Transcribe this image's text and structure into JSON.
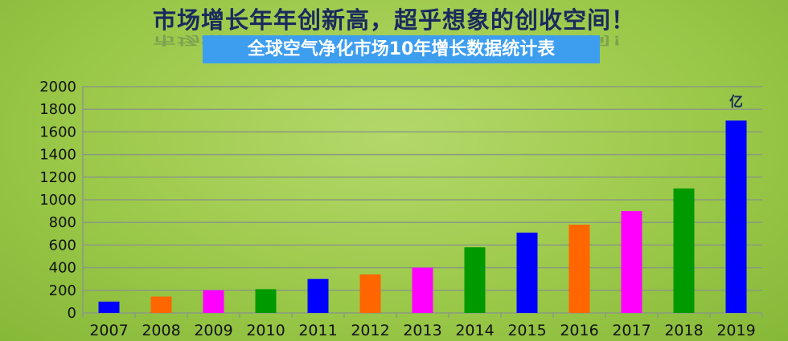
{
  "headline": "市场增长年年创新高，超乎想象的创收空间！",
  "chart_data": {
    "type": "bar",
    "title": "全球空气净化市场10年增长数据统计表",
    "unit_label": "亿",
    "categories": [
      "2007",
      "2008",
      "2009",
      "2010",
      "2011",
      "2012",
      "2013",
      "2014",
      "2015",
      "2016",
      "2017",
      "2018",
      "2019"
    ],
    "values": [
      100,
      145,
      200,
      210,
      300,
      340,
      400,
      580,
      710,
      780,
      900,
      1100,
      1700
    ],
    "bar_colors": [
      "#0000ff",
      "#ff6600",
      "#ff00ff",
      "#009900",
      "#0000ff",
      "#ff6600",
      "#ff00ff",
      "#009900",
      "#0000ff",
      "#ff6600",
      "#ff00ff",
      "#009900",
      "#0000ff"
    ],
    "ylim": [
      0,
      2000
    ],
    "yticks": [
      0,
      200,
      400,
      600,
      800,
      1000,
      1200,
      1400,
      1600,
      1800,
      2000
    ],
    "grid": true
  }
}
